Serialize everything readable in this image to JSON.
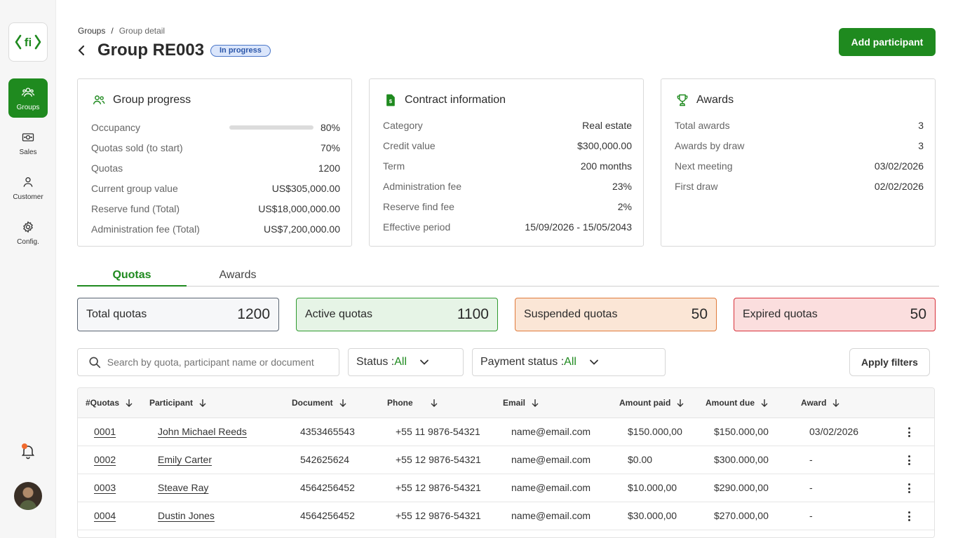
{
  "sidebar": {
    "logo_text": "<fi>",
    "items": [
      {
        "label": "Groups",
        "icon": "users-icon",
        "active": true
      },
      {
        "label": "Sales",
        "icon": "cash-icon",
        "active": false
      },
      {
        "label": "Customer",
        "icon": "person-icon",
        "active": false
      },
      {
        "label": "Config.",
        "icon": "gear-icon",
        "active": false
      }
    ]
  },
  "breadcrumb": {
    "root": "Groups",
    "separator": "/",
    "current": "Group detail"
  },
  "header": {
    "title": "Group RE003",
    "status": "In progress",
    "add_button": "Add participant"
  },
  "colors": {
    "accent": "#1f8a1f",
    "badge_bg": "#dbe6fb",
    "badge_border": "#4a76c8"
  },
  "cards": {
    "progress": {
      "title": "Group progress",
      "rows": [
        {
          "label": "Occupancy",
          "value": "80%",
          "progress": 0.8
        },
        {
          "label": "Quotas sold (to start)",
          "value": "70%"
        },
        {
          "label": "Quotas",
          "value": "1200"
        },
        {
          "label": "Current group value",
          "value": "US$305,000.00"
        },
        {
          "label": "Reserve fund (Total)",
          "value": "US$18,000,000.00"
        },
        {
          "label": "Administration fee (Total)",
          "value": "US$7,200,000.00"
        }
      ]
    },
    "contract": {
      "title": "Contract information",
      "rows": [
        {
          "label": "Category",
          "value": "Real estate"
        },
        {
          "label": "Credit value",
          "value": "$300,000.00"
        },
        {
          "label": "Term",
          "value": "200 months"
        },
        {
          "label": "Administration fee",
          "value": "23%"
        },
        {
          "label": "Reserve find fee",
          "value": "2%"
        },
        {
          "label": "Effective period",
          "value": "15/09/2026 - 15/05/2043"
        }
      ]
    },
    "awards": {
      "title": "Awards",
      "rows": [
        {
          "label": "Total awards",
          "value": "3"
        },
        {
          "label": "Awards by draw",
          "value": "3"
        },
        {
          "label": "Next meeting",
          "value": "03/02/2026"
        },
        {
          "label": "First draw",
          "value": "02/02/2026"
        }
      ]
    }
  },
  "tabs": [
    {
      "label": "Quotas",
      "active": true
    },
    {
      "label": "Awards",
      "active": false
    }
  ],
  "stats": [
    {
      "label": "Total quotas",
      "value": "1200",
      "bg": "#f6f7f9",
      "border": "#5a6472"
    },
    {
      "label": "Active quotas",
      "value": "1100",
      "bg": "#e6f4e6",
      "border": "#2e9a2e"
    },
    {
      "label": "Suspended quotas",
      "value": "50",
      "bg": "#fbe6d6",
      "border": "#e07a3a"
    },
    {
      "label": "Expired quotas",
      "value": "50",
      "bg": "#fbdede",
      "border": "#d8313a"
    }
  ],
  "filters": {
    "search_placeholder": "Search by quota, participant name or document",
    "status_label": "Status :",
    "status_value": "All",
    "payment_label": "Payment status :",
    "payment_value": "All",
    "apply": "Apply filters"
  },
  "table": {
    "columns": [
      "#Quotas",
      "Participant",
      "Document",
      "Phone",
      "Email",
      "Amount paid",
      "Amount due",
      "Award"
    ],
    "rows": [
      [
        "0001",
        "John Michael Reeds",
        "4353465543",
        "+55 11 9876-54321",
        "name@email.com",
        "$150.000,00",
        "$150.000,00",
        "03/02/2026"
      ],
      [
        "0002",
        "Emily Carter",
        "542625624",
        "+55 12 9876-54321",
        "name@email.com",
        "$0.00",
        "$300.000,00",
        "-"
      ],
      [
        "0003",
        "Steave Ray",
        "4564256452",
        "+55 12 9876-54321",
        "name@email.com",
        "$10.000,00",
        "$290.000,00",
        "-"
      ],
      [
        "0004",
        "Dustin Jones",
        "4564256452",
        "+55 12 9876-54321",
        "name@email.com",
        "$30.000,00",
        "$270.000,00",
        "-"
      ]
    ]
  }
}
